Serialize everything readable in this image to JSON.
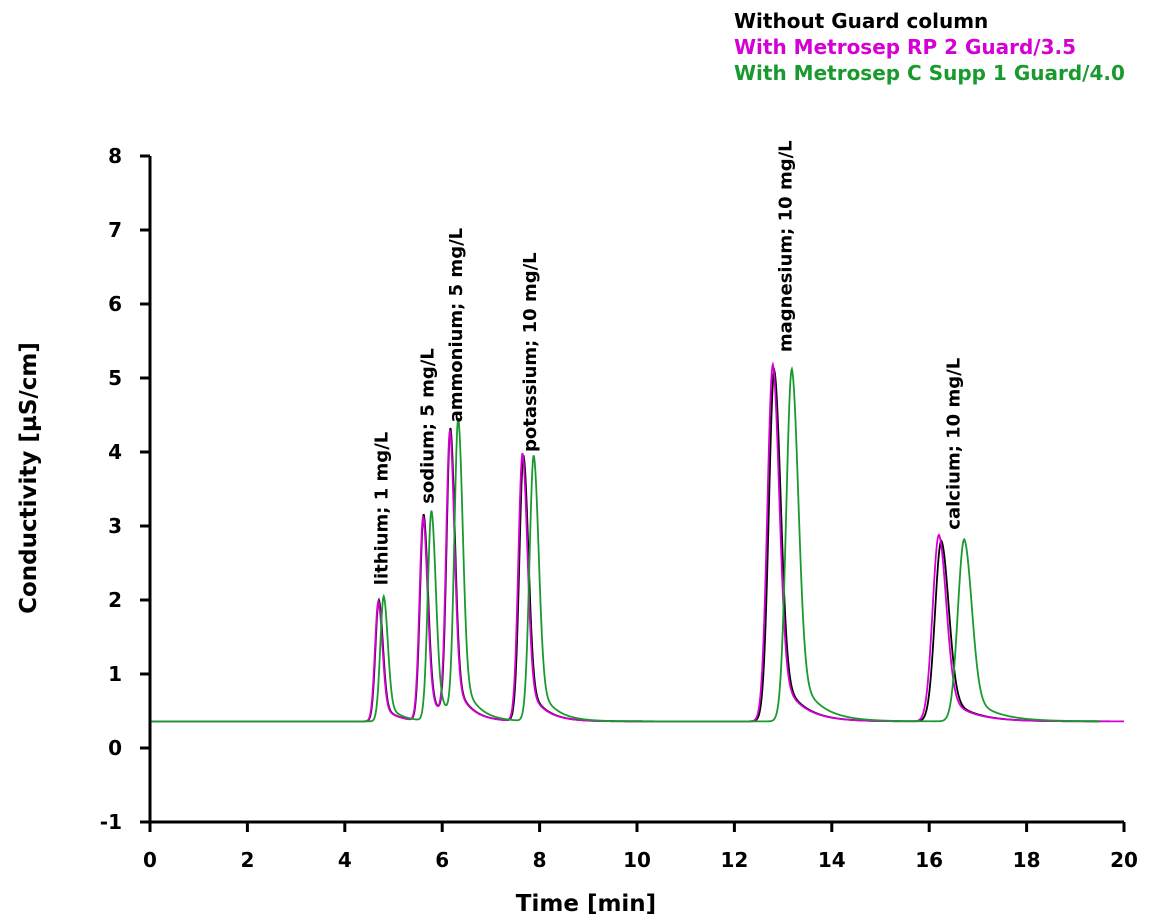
{
  "chart_data": {
    "type": "line",
    "title": "",
    "xlabel": "Time [min]",
    "ylabel": "Conductivity [µS/cm]",
    "xlim": [
      0,
      20
    ],
    "ylim": [
      -1,
      8
    ],
    "x_ticks": [
      0,
      2,
      4,
      6,
      8,
      10,
      12,
      14,
      16,
      18,
      20
    ],
    "y_ticks": [
      -1,
      0,
      1,
      2,
      3,
      4,
      5,
      6,
      7,
      8
    ],
    "grid": false,
    "legend_position": "top-right",
    "baseline": 0.36,
    "series": [
      {
        "name": "Without Guard column",
        "color": "#000000",
        "x_end": 19.5,
        "peaks": [
          {
            "rt": 4.7,
            "height": 2.0
          },
          {
            "rt": 5.62,
            "height": 3.15
          },
          {
            "rt": 6.17,
            "height": 4.25
          },
          {
            "rt": 7.67,
            "height": 3.95
          },
          {
            "rt": 12.82,
            "height": 5.1
          },
          {
            "rt": 16.25,
            "height": 2.8
          }
        ]
      },
      {
        "name": "With Metrosep RP 2 Guard/3.5",
        "color": "#d400d4",
        "x_end": 20.0,
        "peaks": [
          {
            "rt": 4.69,
            "height": 1.98
          },
          {
            "rt": 5.61,
            "height": 3.12
          },
          {
            "rt": 6.16,
            "height": 4.22
          },
          {
            "rt": 7.65,
            "height": 3.98
          },
          {
            "rt": 12.79,
            "height": 5.18
          },
          {
            "rt": 16.2,
            "height": 2.88
          }
        ]
      },
      {
        "name": "With Metrosep C Supp 1 Guard/4.0",
        "color": "#1a9a2e",
        "x_end": 19.5,
        "peaks": [
          {
            "rt": 4.8,
            "height": 2.05
          },
          {
            "rt": 5.78,
            "height": 3.2
          },
          {
            "rt": 6.33,
            "height": 4.38
          },
          {
            "rt": 7.88,
            "height": 3.95
          },
          {
            "rt": 13.18,
            "height": 5.12
          },
          {
            "rt": 16.72,
            "height": 2.82
          }
        ]
      }
    ],
    "annotations": [
      {
        "text": "lithium; 1 mg/L",
        "x": 4.75,
        "y": 2.2
      },
      {
        "text": "sodium; 5 mg/L",
        "x": 5.7,
        "y": 3.3
      },
      {
        "text": "ammonium; 5 mg/L",
        "x": 6.28,
        "y": 4.4
      },
      {
        "text": "potassium; 10 mg/L",
        "x": 7.8,
        "y": 4.0
      },
      {
        "text": "magnesium; 10 mg/L",
        "x": 13.05,
        "y": 5.35
      },
      {
        "text": "calcium; 10 mg/L",
        "x": 16.5,
        "y": 2.95
      }
    ]
  }
}
